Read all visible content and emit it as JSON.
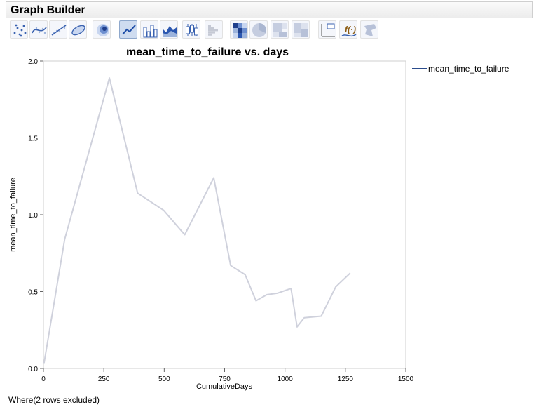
{
  "window": {
    "title": "Graph Builder"
  },
  "toolbar": {
    "buttons": [
      {
        "name": "points-element",
        "icon": "scatter-points-icon",
        "selected": false
      },
      {
        "name": "smoother-element",
        "icon": "smoother-icon",
        "selected": false
      },
      {
        "name": "line-of-fit-element",
        "icon": "line-of-fit-icon",
        "selected": false
      },
      {
        "name": "ellipse-element",
        "icon": "ellipse-icon",
        "selected": false
      },
      {
        "name": "contour-element",
        "icon": "contour-icon",
        "selected": false
      },
      {
        "name": "line-element",
        "icon": "line-chart-icon",
        "selected": true
      },
      {
        "name": "bar-element",
        "icon": "bar-chart-icon",
        "selected": false
      },
      {
        "name": "area-element",
        "icon": "area-chart-icon",
        "selected": false
      },
      {
        "name": "box-plot-element",
        "icon": "box-plot-icon",
        "selected": false
      },
      {
        "name": "histogram-element",
        "icon": "histogram-icon",
        "selected": false
      },
      {
        "name": "heatmap-element",
        "icon": "heatmap-icon",
        "selected": false
      },
      {
        "name": "pie-element",
        "icon": "pie-chart-icon",
        "selected": false
      },
      {
        "name": "treemap-element",
        "icon": "treemap-icon",
        "selected": false
      },
      {
        "name": "mosaic-element",
        "icon": "mosaic-icon",
        "selected": false
      },
      {
        "name": "caption-box-element",
        "icon": "caption-box-icon",
        "selected": false
      },
      {
        "name": "formula-element",
        "icon": "formula-icon",
        "selected": false
      },
      {
        "name": "map-shapes-element",
        "icon": "map-shapes-icon",
        "selected": false
      }
    ]
  },
  "chart_data": {
    "type": "line",
    "title": "mean_time_to_failure vs. days",
    "xlabel": "CumulativeDays",
    "ylabel": "mean_time_to_failure",
    "xlim": [
      0,
      1500
    ],
    "ylim": [
      0,
      2.0
    ],
    "xticks": [
      0,
      250,
      500,
      750,
      1000,
      1250,
      1500
    ],
    "yticks": [
      0.0,
      0.5,
      1.0,
      1.5,
      2.0
    ],
    "xtick_labels": [
      "0",
      "250",
      "500",
      "750",
      "1000",
      "1250",
      "1500"
    ],
    "ytick_labels": [
      "0.0",
      "0.5",
      "1.0",
      "1.5",
      "2.0"
    ],
    "grid": false,
    "legend_position": "right",
    "series": [
      {
        "name": "mean_time_to_failure",
        "color": "#cfd1dc",
        "legend_color": "#2b4c8c",
        "x": [
          2,
          88,
          273,
          390,
          497,
          585,
          705,
          775,
          835,
          880,
          925,
          970,
          1025,
          1050,
          1080,
          1150,
          1210,
          1270
        ],
        "y": [
          0.03,
          0.84,
          1.89,
          1.14,
          1.03,
          0.87,
          1.24,
          0.67,
          0.61,
          0.44,
          0.48,
          0.49,
          0.52,
          0.27,
          0.33,
          0.34,
          0.53,
          0.62
        ]
      }
    ]
  },
  "footer": {
    "where_text": "Where(2 rows excluded)"
  }
}
